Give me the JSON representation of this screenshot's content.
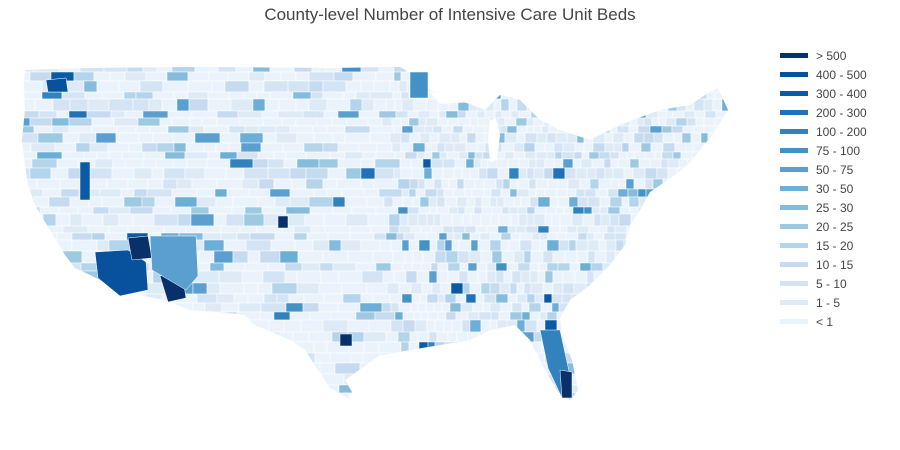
{
  "title": "County-level Number of Intensive Care Unit Beds",
  "legend": [
    {
      "label": "> 500",
      "color": "#08306b"
    },
    {
      "label": "400 - 500",
      "color": "#08519c"
    },
    {
      "label": "300 - 400",
      "color": "#0b5aa6"
    },
    {
      "label": "200 - 300",
      "color": "#2171b5"
    },
    {
      "label": "100 - 200",
      "color": "#3182bd"
    },
    {
      "label": "75 - 100",
      "color": "#4292c6"
    },
    {
      "label": "50 - 75",
      "color": "#5a9fd0"
    },
    {
      "label": "30 - 50",
      "color": "#6baed6"
    },
    {
      "label": "25 - 30",
      "color": "#85bcdc"
    },
    {
      "label": "20 - 25",
      "color": "#9ecae1"
    },
    {
      "label": "15 - 20",
      "color": "#b3d4ea"
    },
    {
      "label": "10 - 15",
      "color": "#c6dbef"
    },
    {
      "label": "5 - 10",
      "color": "#d4e4f4"
    },
    {
      "label": "1 - 5",
      "color": "#deebf7"
    },
    {
      "label": "< 1",
      "color": "#eaf3fb"
    }
  ],
  "map": {
    "region": "contiguous-us",
    "unit": "county",
    "land_color": "#eaf3fb",
    "border_color": "#ffffff"
  }
}
